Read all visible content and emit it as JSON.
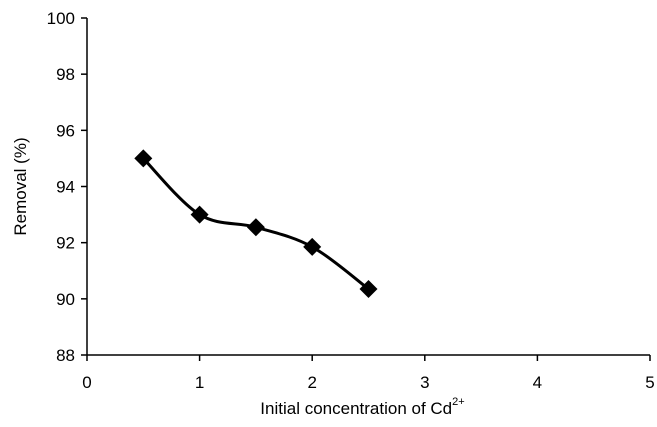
{
  "chart_data": {
    "type": "line",
    "title": "",
    "xlabel": "Initial concentration of Cd",
    "xlabel_superscript": "2+",
    "ylabel": "Removal (%)",
    "xlim": [
      0,
      5
    ],
    "ylim": [
      88,
      100
    ],
    "xticks": [
      "0",
      "1",
      "2",
      "3",
      "4",
      "5"
    ],
    "yticks": [
      "88",
      "90",
      "92",
      "94",
      "96",
      "98",
      "100"
    ],
    "grid": false,
    "legend": "none",
    "series": [
      {
        "marker": "diamond",
        "color": "#000000",
        "smooth": true,
        "x": [
          0.5,
          1.0,
          1.5,
          2.0,
          2.5
        ],
        "y": [
          95.0,
          93.0,
          92.55,
          91.85,
          90.35
        ]
      }
    ]
  }
}
